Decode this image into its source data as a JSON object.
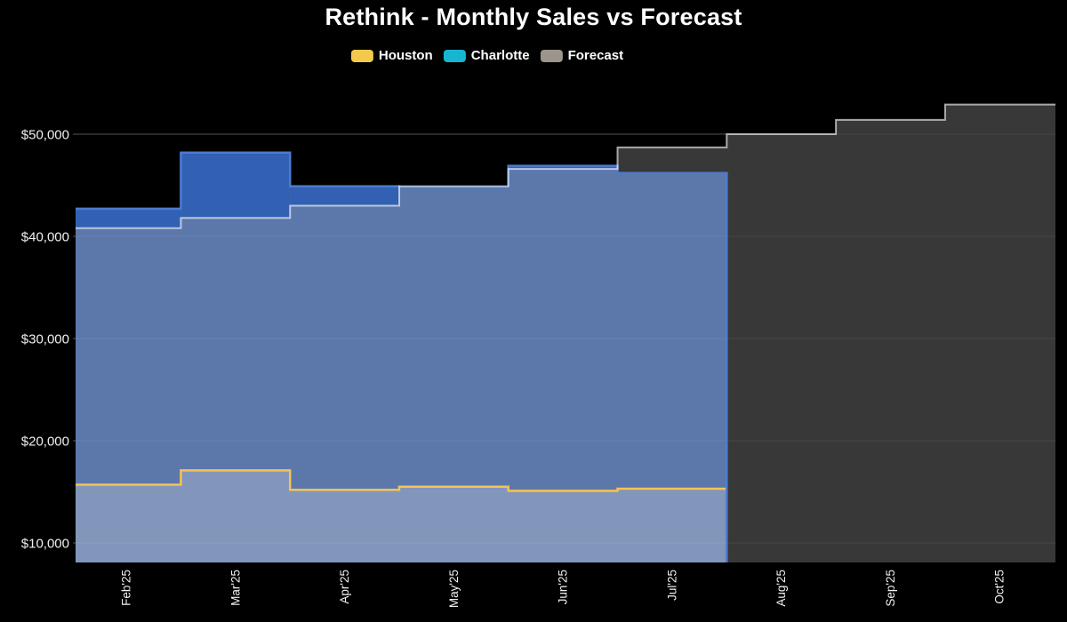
{
  "title": "Rethink - Monthly Sales vs Forecast",
  "legend": {
    "items": [
      {
        "label": "Houston",
        "marker_color": "#f2c94c"
      },
      {
        "label": "Charlotte",
        "marker_color": "#16b6d3"
      },
      {
        "label": "Forecast",
        "marker_color": "#9b958c"
      }
    ]
  },
  "chart_data": {
    "type": "area",
    "subtype": "stacked-step-area",
    "title": "Rethink - Monthly Sales vs Forecast",
    "categories": [
      "Feb'25",
      "Mar'25",
      "Apr'25",
      "May'25",
      "Jun'25",
      "Jul'25",
      "Aug'25",
      "Sep'25",
      "Oct'25"
    ],
    "series": [
      {
        "name": "Houston",
        "stack": "actual",
        "values": [
          15700,
          17100,
          15200,
          15500,
          15100,
          15300,
          null,
          null,
          null
        ]
      },
      {
        "name": "Charlotte",
        "stack": "actual",
        "values": [
          27000,
          31100,
          29700,
          29300,
          31800,
          30900,
          null,
          null,
          null
        ]
      },
      {
        "name": "Forecast",
        "values": [
          40800,
          41800,
          43000,
          44900,
          46600,
          48700,
          50000,
          51400,
          52900
        ]
      }
    ],
    "actual_stack_totals": [
      42700,
      48200,
      44900,
      44800,
      46900,
      46200,
      null,
      null,
      null
    ],
    "xlabel": "",
    "ylabel": "",
    "ytick_values": [
      10000,
      20000,
      30000,
      40000,
      50000
    ],
    "ytick_labels": [
      "$10,000",
      "$20,000",
      "$30,000",
      "$40,000",
      "$50,000"
    ],
    "ylim": [
      8000,
      53600
    ],
    "grid": true,
    "legend_position": "top",
    "xtick_rotation_deg": 90,
    "colors": {
      "background": "#000000",
      "houston_fill": "#8296bc",
      "charlotte_fill": "#5c78ab",
      "charlotte_above_forecast_fill": "#3261b3",
      "forecast_fill": "#383838",
      "houston_line": "#f6c252",
      "charlotte_line": "#4e7bd0",
      "forecast_line": "rgba(255,255,255,0.62)",
      "grid_base": "#464646",
      "grid_overlay": "rgba(255,255,255,0.07)",
      "axis_text": "#efefef",
      "title_text": "#ffffff",
      "legend_text": "#ffffff"
    }
  }
}
